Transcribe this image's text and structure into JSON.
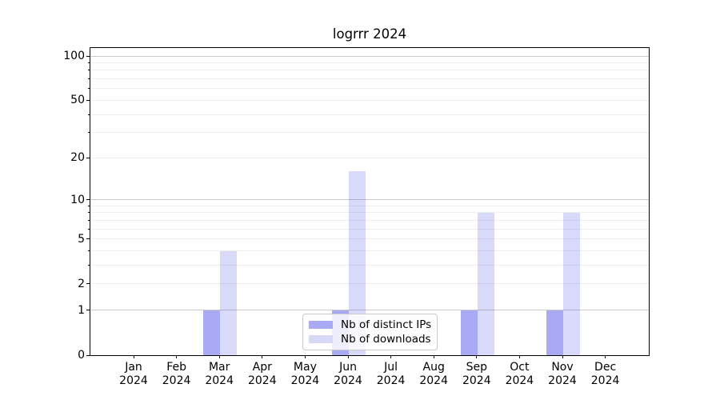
{
  "title": "logrrr 2024",
  "chart_data": {
    "type": "bar",
    "title": "logrrr 2024",
    "categories": [
      "Jan 2024",
      "Feb 2024",
      "Mar 2024",
      "Apr 2024",
      "May 2024",
      "Jun 2024",
      "Jul 2024",
      "Aug 2024",
      "Sep 2024",
      "Oct 2024",
      "Nov 2024",
      "Dec 2024"
    ],
    "series": [
      {
        "name": "Nb of distinct IPs",
        "values": [
          0,
          0,
          1,
          0,
          0,
          1,
          0,
          0,
          1,
          0,
          1,
          0
        ],
        "color": "#a9a9f4",
        "fill": "rgba(64,64,230,0.45)"
      },
      {
        "name": "Nb of downloads",
        "values": [
          0,
          0,
          4,
          0,
          0,
          16,
          0,
          0,
          8,
          0,
          8,
          0
        ],
        "color": "#d8d8f7",
        "fill": "rgba(64,64,230,0.20)"
      }
    ],
    "xlabel": "",
    "ylabel": "",
    "yscale": "log1p",
    "ylim": [
      0,
      113
    ],
    "yticks_labeled": [
      0,
      1,
      2,
      5,
      10,
      20,
      50,
      100
    ],
    "yticks_decade": [
      1,
      10,
      100
    ],
    "yticks_minor": [
      2,
      3,
      4,
      5,
      6,
      7,
      8,
      9,
      20,
      30,
      40,
      50,
      60,
      70,
      80,
      90
    ],
    "grid": "horizontal",
    "legend_position": "lower center inside"
  },
  "colors": {
    "background": "#ffffff",
    "axis": "#000000",
    "grid_major": "#c9c9c9",
    "grid_minor": "#ededed",
    "legend_border": "#c9c9c9",
    "series_ips": "#a9a9f4",
    "series_downloads": "#d8d8f7"
  }
}
